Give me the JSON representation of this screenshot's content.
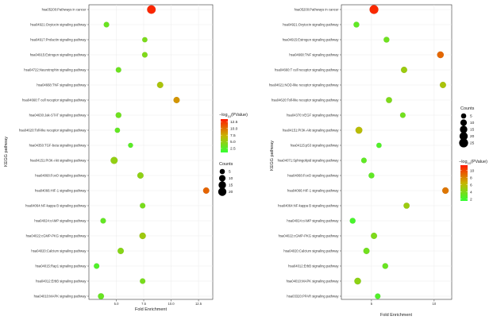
{
  "chart_data": [
    {
      "type": "scatter",
      "title": "",
      "xlabel": "Fold Enrichment",
      "ylabel": "KEGG pathway",
      "xlim": [
        2.5,
        13.8
      ],
      "xticks": [
        5.0,
        7.5,
        10.0,
        12.5
      ],
      "xtick_labels": [
        "5.0",
        "7.5",
        "10.0",
        "12.5"
      ],
      "pvalue_colorbar": {
        "title_prefix": "−log",
        "title_sub": "10",
        "title_suffix": "(PValue)",
        "range": [
          1,
          13.5
        ],
        "ticks": [
          12.5,
          10.0,
          7.5,
          5.0,
          2.5
        ],
        "tick_labels": [
          "12.5",
          "10.0",
          "7.5",
          "5.0",
          "2.5"
        ]
      },
      "counts_legend": {
        "title": "Counts",
        "values": [
          5,
          10,
          15,
          20
        ],
        "labels": [
          "5",
          "10",
          "15",
          "20"
        ]
      },
      "points": [
        {
          "pathway": "hsa05200:Pathways in cancer",
          "x": 8.2,
          "count": 22,
          "neglog10p": 13.0
        },
        {
          "pathway": "hsa04921:Oxytocin signaling pathway",
          "x": 4.1,
          "count": 6,
          "neglog10p": 3.3
        },
        {
          "pathway": "hsa04917:Prolactin signaling pathway",
          "x": 7.6,
          "count": 5,
          "neglog10p": 4.0
        },
        {
          "pathway": "hsa04915:Estrogen signaling pathway",
          "x": 7.6,
          "count": 6,
          "neglog10p": 4.2
        },
        {
          "pathway": "hsa04722:Neurotrophin signaling pathway",
          "x": 5.2,
          "count": 6,
          "neglog10p": 3.4
        },
        {
          "pathway": "hsa04668:TNF signaling pathway",
          "x": 9.0,
          "count": 9,
          "neglog10p": 6.0
        },
        {
          "pathway": "hsa04660:T cell receptor signaling pathway",
          "x": 10.5,
          "count": 9,
          "neglog10p": 8.5
        },
        {
          "pathway": "hsa04630:Jak-STAT signaling pathway",
          "x": 5.2,
          "count": 7,
          "neglog10p": 3.5
        },
        {
          "pathway": "hsa04620:Toll-like receptor signaling pathway",
          "x": 5.1,
          "count": 5,
          "neglog10p": 3.0
        },
        {
          "pathway": "hsa04350:TGF-beta signaling pathway",
          "x": 6.3,
          "count": 4,
          "neglog10p": 2.6
        },
        {
          "pathway": "hsa04151:PI3K-Akt signaling pathway",
          "x": 4.8,
          "count": 13,
          "neglog10p": 5.0
        },
        {
          "pathway": "hsa04068:FoxO signaling pathway",
          "x": 7.2,
          "count": 9,
          "neglog10p": 4.8
        },
        {
          "pathway": "hsa04066:HIF-1 signaling pathway",
          "x": 13.2,
          "count": 9,
          "neglog10p": 10.5
        },
        {
          "pathway": "hsa04064:NF-kappa B signaling pathway",
          "x": 7.4,
          "count": 6,
          "neglog10p": 3.9
        },
        {
          "pathway": "hsa04024:cAMP signaling pathway",
          "x": 3.8,
          "count": 6,
          "neglog10p": 3.0
        },
        {
          "pathway": "hsa04022:cGMP-PKG signaling pathway",
          "x": 7.4,
          "count": 10,
          "neglog10p": 5.5
        },
        {
          "pathway": "hsa04020:Calcium signaling pathway",
          "x": 5.4,
          "count": 9,
          "neglog10p": 4.5
        },
        {
          "pathway": "hsa04015:Rap1 signaling pathway",
          "x": 3.2,
          "count": 6,
          "neglog10p": 2.2
        },
        {
          "pathway": "hsa04012:ErbB signaling pathway",
          "x": 7.4,
          "count": 6,
          "neglog10p": 3.9
        },
        {
          "pathway": "hsa04010:MAPK signaling pathway",
          "x": 3.6,
          "count": 8,
          "neglog10p": 3.2
        }
      ]
    },
    {
      "type": "scatter",
      "title": "",
      "xlabel": "Fold Enrichment",
      "ylabel": "KEGG pathway",
      "xlim": [
        2.6,
        11.4
      ],
      "xticks": [
        5,
        10
      ],
      "xtick_labels": [
        "5",
        "10"
      ],
      "counts_legend": {
        "title": "Counts",
        "values": [
          5,
          10,
          15,
          20,
          25
        ],
        "labels": [
          "5",
          "10",
          "15",
          "20",
          "25"
        ]
      },
      "pvalue_colorbar": {
        "title_prefix": "−log",
        "title_sub": "10",
        "title_suffix": "(PValue)",
        "range": [
          1.5,
          11.5
        ],
        "ticks": [
          10,
          8,
          6,
          4,
          2
        ],
        "tick_labels": [
          "10",
          "8",
          "6",
          "4",
          "2"
        ]
      },
      "points": [
        {
          "pathway": "hsa05200:Pathways in cancer",
          "x": 5.2,
          "count": 24,
          "neglog10p": 11.0
        },
        {
          "pathway": "hsa04921:Oxytocin signaling pathway",
          "x": 3.8,
          "count": 7,
          "neglog10p": 3.0
        },
        {
          "pathway": "hsa04915:Estrogen signaling pathway",
          "x": 6.2,
          "count": 7,
          "neglog10p": 3.5
        },
        {
          "pathway": "hsa04668:TNF signaling pathway",
          "x": 10.5,
          "count": 11,
          "neglog10p": 9.0
        },
        {
          "pathway": "hsa04660:T cell receptor signaling pathway",
          "x": 7.6,
          "count": 9,
          "neglog10p": 5.0
        },
        {
          "pathway": "hsa04621:NOD-like receptor signaling pathway",
          "x": 10.7,
          "count": 9,
          "neglog10p": 5.5
        },
        {
          "pathway": "hsa04620:Toll-like receptor signaling pathway",
          "x": 6.4,
          "count": 8,
          "neglog10p": 4.0
        },
        {
          "pathway": "hsa04370:VEGF signaling pathway",
          "x": 7.5,
          "count": 6,
          "neglog10p": 3.6
        },
        {
          "pathway": "hsa04151:PI3K-Akt signaling pathway",
          "x": 4.0,
          "count": 12,
          "neglog10p": 6.0
        },
        {
          "pathway": "hsa04115:p53 signaling pathway",
          "x": 5.6,
          "count": 5,
          "neglog10p": 2.5
        },
        {
          "pathway": "hsa04071:Sphingolipid signaling pathway",
          "x": 4.4,
          "count": 6,
          "neglog10p": 3.0
        },
        {
          "pathway": "hsa04068:FoxO signaling pathway",
          "x": 5.0,
          "count": 7,
          "neglog10p": 3.0
        },
        {
          "pathway": "hsa04066:HIF-1 signaling pathway",
          "x": 10.9,
          "count": 10,
          "neglog10p": 8.5
        },
        {
          "pathway": "hsa04064:NF-kappa B signaling pathway",
          "x": 7.8,
          "count": 8,
          "neglog10p": 5.0
        },
        {
          "pathway": "hsa04024:cAMP signaling pathway",
          "x": 3.5,
          "count": 7,
          "neglog10p": 2.2
        },
        {
          "pathway": "hsa04022:cGMP-PKG signaling pathway",
          "x": 5.2,
          "count": 9,
          "neglog10p": 4.0
        },
        {
          "pathway": "hsa04020:Calcium signaling pathway",
          "x": 4.6,
          "count": 9,
          "neglog10p": 3.6
        },
        {
          "pathway": "hsa04012:ErbB signaling pathway",
          "x": 6.1,
          "count": 7,
          "neglog10p": 3.3
        },
        {
          "pathway": "hsa04010:MAPK signaling pathway",
          "x": 3.9,
          "count": 11,
          "neglog10p": 4.5
        },
        {
          "pathway": "hsa03320:PPAR signaling pathway",
          "x": 5.5,
          "count": 6,
          "neglog10p": 2.5
        }
      ]
    }
  ],
  "colors": {
    "low": "#33ff33",
    "mid": "#c8b400",
    "high": "#ff1a00",
    "grid": "#ebebeb",
    "frame": "#333333"
  }
}
